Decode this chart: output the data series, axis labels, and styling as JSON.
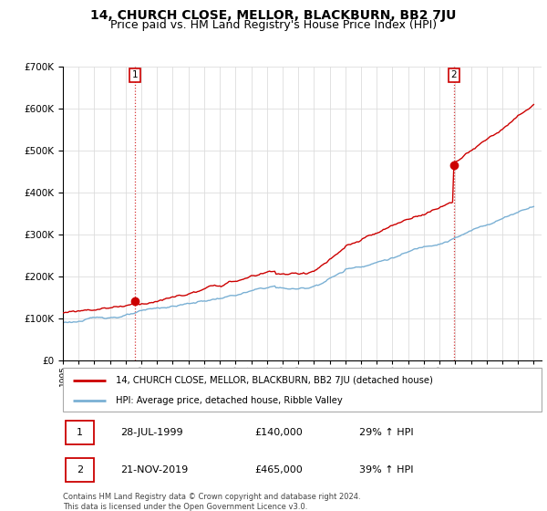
{
  "title": "14, CHURCH CLOSE, MELLOR, BLACKBURN, BB2 7JU",
  "subtitle": "Price paid vs. HM Land Registry's House Price Index (HPI)",
  "ylim": [
    0,
    700000
  ],
  "xlim_start": 1995.0,
  "xlim_end": 2025.5,
  "sale1_x": 1999.57,
  "sale1_y": 140000,
  "sale2_x": 2019.9,
  "sale2_y": 465000,
  "legend_line1_label": "14, CHURCH CLOSE, MELLOR, BLACKBURN, BB2 7JU (detached house)",
  "legend_line2_label": "HPI: Average price, detached house, Ribble Valley",
  "footer": "Contains HM Land Registry data © Crown copyright and database right 2024.\nThis data is licensed under the Open Government Licence v3.0.",
  "line1_color": "#cc0000",
  "line2_color": "#7ab0d4",
  "grid_color": "#dddddd",
  "title_fontsize": 10,
  "subtitle_fontsize": 9
}
